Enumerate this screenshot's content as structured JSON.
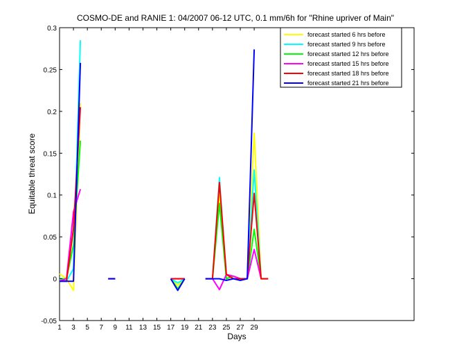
{
  "chart_data": {
    "type": "line",
    "title": "COSMO-DE and RANIE 1: 04/2007 06-12 UTC, 0.1 mm/6h for \"Rhine upriver of Main\"",
    "xlabel": "Days",
    "ylabel": "Equitable threat score",
    "xlim": [
      1,
      52
    ],
    "ylim": [
      -0.05,
      0.3
    ],
    "x_ticks": [
      1,
      3,
      5,
      7,
      9,
      11,
      13,
      15,
      17,
      19,
      21,
      23,
      25,
      27,
      29
    ],
    "y_ticks": [
      -0.05,
      0,
      0.05,
      0.1,
      0.15,
      0.2,
      0.25,
      0.3
    ],
    "y_tick_labels": [
      "-0.05",
      "0",
      "0.05",
      "0.1",
      "0.15",
      "0.2",
      "0.25",
      "0.3"
    ],
    "grid": false,
    "legend_position": "top-right",
    "series": [
      {
        "name": "forecast started 6 hrs before",
        "color": "#ffff00",
        "values": [
          [
            1,
            0.006
          ],
          [
            2,
            0.0
          ],
          [
            3,
            -0.014
          ],
          [
            4,
            0.21
          ],
          [
            5,
            null
          ],
          [
            8,
            0.0
          ],
          [
            9,
            0.0
          ],
          [
            10,
            null
          ],
          [
            12,
            0.0
          ],
          [
            13,
            null
          ],
          [
            17,
            0.0
          ],
          [
            18,
            -0.008
          ],
          [
            19,
            0.0
          ],
          [
            20,
            null
          ],
          [
            22,
            0.0
          ],
          [
            23,
            0.0
          ],
          [
            24,
            0.1
          ],
          [
            25,
            0.0
          ],
          [
            26,
            0.003
          ],
          [
            27,
            0.0
          ],
          [
            28,
            0.0
          ],
          [
            29,
            0.174
          ],
          [
            30,
            0.0
          ],
          [
            31,
            0.0
          ]
        ]
      },
      {
        "name": "forecast started 9 hrs before",
        "color": "#00ffff",
        "values": [
          [
            1,
            0.0
          ],
          [
            2,
            -0.003
          ],
          [
            3,
            0.012
          ],
          [
            4,
            0.285
          ],
          [
            5,
            null
          ],
          [
            8,
            0.0
          ],
          [
            9,
            0.0
          ],
          [
            10,
            null
          ],
          [
            12,
            0.0
          ],
          [
            13,
            null
          ],
          [
            17,
            0.0
          ],
          [
            18,
            -0.005
          ],
          [
            19,
            0.0
          ],
          [
            20,
            null
          ],
          [
            22,
            0.0
          ],
          [
            23,
            0.0
          ],
          [
            24,
            0.121
          ],
          [
            25,
            0.0
          ],
          [
            26,
            0.003
          ],
          [
            27,
            0.0
          ],
          [
            28,
            0.0
          ],
          [
            29,
            0.13
          ],
          [
            30,
            0.0
          ],
          [
            31,
            0.0
          ]
        ]
      },
      {
        "name": "forecast started 12 hrs before",
        "color": "#00ff00",
        "values": [
          [
            1,
            0.0
          ],
          [
            2,
            0.0
          ],
          [
            3,
            0.04
          ],
          [
            4,
            0.165
          ],
          [
            5,
            null
          ],
          [
            8,
            0.0
          ],
          [
            9,
            0.0
          ],
          [
            10,
            null
          ],
          [
            12,
            0.0
          ],
          [
            13,
            null
          ],
          [
            17,
            0.0
          ],
          [
            18,
            -0.012
          ],
          [
            19,
            0.0
          ],
          [
            20,
            null
          ],
          [
            22,
            0.0
          ],
          [
            23,
            0.0
          ],
          [
            24,
            0.09
          ],
          [
            25,
            0.0
          ],
          [
            26,
            0.003
          ],
          [
            27,
            0.0
          ],
          [
            28,
            0.0
          ],
          [
            29,
            0.059
          ],
          [
            30,
            0.0
          ],
          [
            31,
            0.0
          ]
        ]
      },
      {
        "name": "forecast started 15 hrs before",
        "color": "#ff00ff",
        "values": [
          [
            1,
            -0.003
          ],
          [
            2,
            0.0
          ],
          [
            3,
            0.08
          ],
          [
            4,
            0.107
          ],
          [
            5,
            null
          ],
          [
            8,
            0.0
          ],
          [
            9,
            0.0
          ],
          [
            10,
            null
          ],
          [
            12,
            0.0
          ],
          [
            13,
            null
          ],
          [
            17,
            0.0
          ],
          [
            18,
            0.0
          ],
          [
            19,
            0.0
          ],
          [
            20,
            null
          ],
          [
            22,
            0.0
          ],
          [
            23,
            0.0
          ],
          [
            24,
            -0.013
          ],
          [
            25,
            0.005
          ],
          [
            26,
            0.003
          ],
          [
            27,
            0.0
          ],
          [
            28,
            0.0
          ],
          [
            29,
            0.035
          ],
          [
            30,
            0.0
          ],
          [
            31,
            0.0
          ]
        ]
      },
      {
        "name": "forecast started 18 hrs before",
        "color": "#ff0000",
        "values": [
          [
            1,
            -0.003
          ],
          [
            2,
            -0.003
          ],
          [
            3,
            0.06
          ],
          [
            4,
            0.205
          ],
          [
            5,
            null
          ],
          [
            8,
            0.0
          ],
          [
            9,
            0.0
          ],
          [
            10,
            null
          ],
          [
            12,
            0.0
          ],
          [
            13,
            null
          ],
          [
            17,
            0.0
          ],
          [
            18,
            0.0
          ],
          [
            19,
            0.0
          ],
          [
            20,
            null
          ],
          [
            22,
            0.0
          ],
          [
            23,
            0.0
          ],
          [
            24,
            0.115
          ],
          [
            25,
            0.005
          ],
          [
            26,
            0.0
          ],
          [
            27,
            0.0
          ],
          [
            28,
            0.0
          ],
          [
            29,
            0.102
          ],
          [
            30,
            0.0
          ],
          [
            31,
            0.0
          ]
        ]
      },
      {
        "name": "forecast started 21 hrs before",
        "color": "#0000ff",
        "values": [
          [
            1,
            -0.003
          ],
          [
            2,
            -0.003
          ],
          [
            3,
            -0.003
          ],
          [
            4,
            0.258
          ],
          [
            5,
            null
          ],
          [
            8,
            0.0
          ],
          [
            9,
            0.0
          ],
          [
            10,
            null
          ],
          [
            12,
            0.0
          ],
          [
            13,
            null
          ],
          [
            17,
            0.0
          ],
          [
            18,
            -0.014
          ],
          [
            19,
            0.0
          ],
          [
            20,
            null
          ],
          [
            22,
            0.0
          ],
          [
            23,
            0.0
          ],
          [
            24,
            0.0
          ],
          [
            25,
            -0.002
          ],
          [
            26,
            0.0
          ],
          [
            27,
            -0.002
          ],
          [
            28,
            0.0
          ],
          [
            29,
            0.274
          ],
          [
            30,
            null
          ]
        ]
      }
    ]
  }
}
